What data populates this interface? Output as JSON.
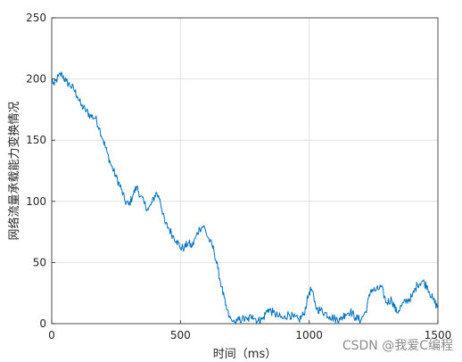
{
  "chart_data": {
    "type": "line",
    "title": "",
    "xlabel": "时间（ms）",
    "ylabel": "网络流量承载能力变换情况",
    "xlim": [
      0,
      1500
    ],
    "ylim": [
      0,
      250
    ],
    "xticks": [
      0,
      500,
      1000,
      1500
    ],
    "yticks": [
      0,
      50,
      100,
      150,
      200,
      250
    ],
    "grid": true,
    "legend": "none",
    "series": [
      {
        "color": "#0072BD",
        "x": [
          0,
          10,
          25,
          40,
          55,
          70,
          85,
          100,
          115,
          130,
          150,
          170,
          185,
          200,
          215,
          230,
          250,
          270,
          285,
          300,
          315,
          330,
          345,
          360,
          375,
          390,
          405,
          420,
          440,
          455,
          470,
          485,
          500,
          515,
          530,
          545,
          560,
          575,
          590,
          600,
          615,
          630,
          645,
          660,
          675,
          690,
          700,
          710,
          720,
          740,
          760,
          780,
          800,
          820,
          840,
          860,
          880,
          900,
          920,
          940,
          960,
          980,
          1000,
          1010,
          1020,
          1030,
          1045,
          1060,
          1080,
          1100,
          1120,
          1140,
          1160,
          1180,
          1200,
          1220,
          1240,
          1260,
          1280,
          1300,
          1320,
          1340,
          1360,
          1380,
          1400,
          1420,
          1440,
          1460,
          1480,
          1500
        ],
        "y": [
          200,
          195,
          202,
          204,
          198,
          195,
          192,
          186,
          178,
          175,
          170,
          168,
          160,
          150,
          140,
          130,
          120,
          110,
          100,
          97,
          105,
          112,
          104,
          98,
          93,
          99,
          107,
          102,
          82,
          78,
          72,
          68,
          62,
          62,
          66,
          63,
          71,
          78,
          80,
          74,
          67,
          60,
          45,
          30,
          15,
          5,
          2,
          1,
          2,
          4,
          3,
          7,
          2,
          4,
          12,
          9,
          6,
          4,
          8,
          5,
          3,
          8,
          26,
          28,
          18,
          12,
          11,
          9,
          6,
          4,
          3,
          8,
          10,
          5,
          3,
          10,
          28,
          27,
          30,
          17,
          20,
          9,
          15,
          19,
          22,
          32,
          35,
          30,
          20,
          13
        ]
      }
    ]
  },
  "watermark": "CSDN @我爱C编程"
}
